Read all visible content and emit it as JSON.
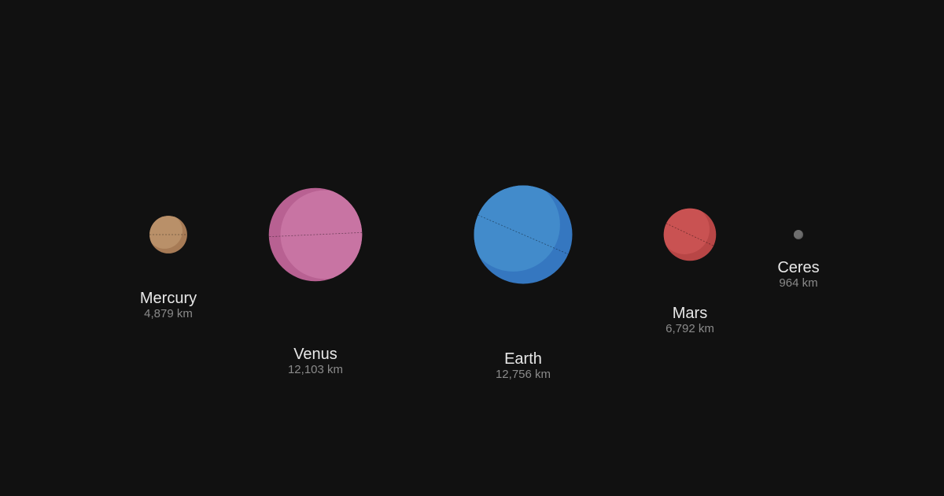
{
  "background": "#111111",
  "planets": [
    {
      "id": "mercury",
      "name": "Mercury",
      "diameter": "4,879 km",
      "diameter_km": 4879,
      "color": "#b99069",
      "shade": "#a77b56",
      "axis_tilt_deg": 0.03
    },
    {
      "id": "venus",
      "name": "Venus",
      "diameter": "12,103 km",
      "diameter_km": 12103,
      "color": "#c874a3",
      "shade": "#b86192",
      "axis_tilt_deg": 177.4
    },
    {
      "id": "earth",
      "name": "Earth",
      "diameter": "12,756 km",
      "diameter_km": 12756,
      "color": "#428bcb",
      "shade": "#3577c0",
      "axis_tilt_deg": 23.4
    },
    {
      "id": "mars",
      "name": "Mars",
      "diameter": "6,792 km",
      "diameter_km": 6792,
      "color": "#c95252",
      "shade": "#b84646",
      "axis_tilt_deg": 25.2
    },
    {
      "id": "ceres",
      "name": "Ceres",
      "diameter": "964 km",
      "diameter_km": 964,
      "color": "#6e6e6e",
      "shade": "#616161",
      "axis_tilt_deg": 4
    }
  ]
}
